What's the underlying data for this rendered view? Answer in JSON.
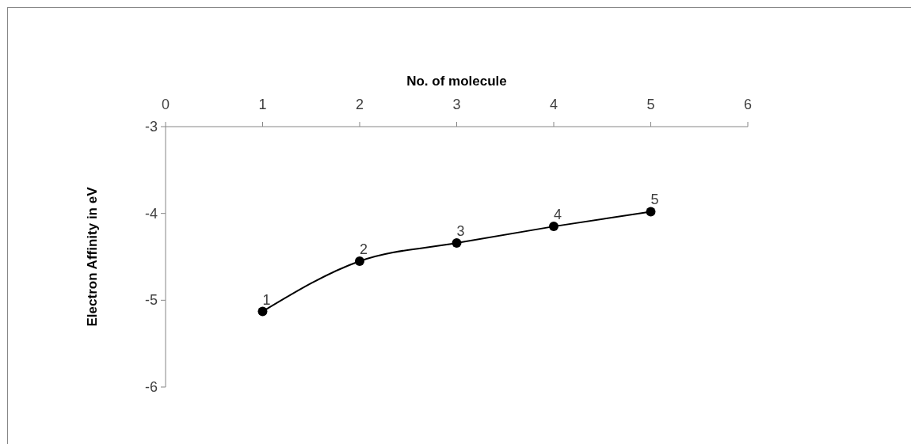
{
  "chart_data": {
    "type": "line",
    "xlabel": "No. of molecule",
    "ylabel": "Electron Affinity in eV",
    "x": [
      1,
      2,
      3,
      4,
      5
    ],
    "series": [
      {
        "color": "#000000",
        "values": [
          -5.13,
          -4.55,
          -4.34,
          -4.15,
          -3.98
        ]
      }
    ],
    "annotations": [
      {
        "text": "1",
        "x": 1,
        "y": -5.13
      },
      {
        "text": "2",
        "x": 2,
        "y": -4.55
      },
      {
        "text": "3",
        "x": 3,
        "y": -4.34
      },
      {
        "text": "4",
        "x": 4,
        "y": -4.15
      },
      {
        "text": "5",
        "x": 5,
        "y": -3.98
      }
    ],
    "xlim": [
      0,
      6
    ],
    "xticks": [
      0,
      1,
      2,
      3,
      4,
      5,
      6
    ],
    "ylim": [
      -6,
      -3
    ],
    "yticks": [
      -3,
      -4,
      -5,
      -6
    ],
    "marker": "circle",
    "line_style": "solid",
    "grid": false
  }
}
